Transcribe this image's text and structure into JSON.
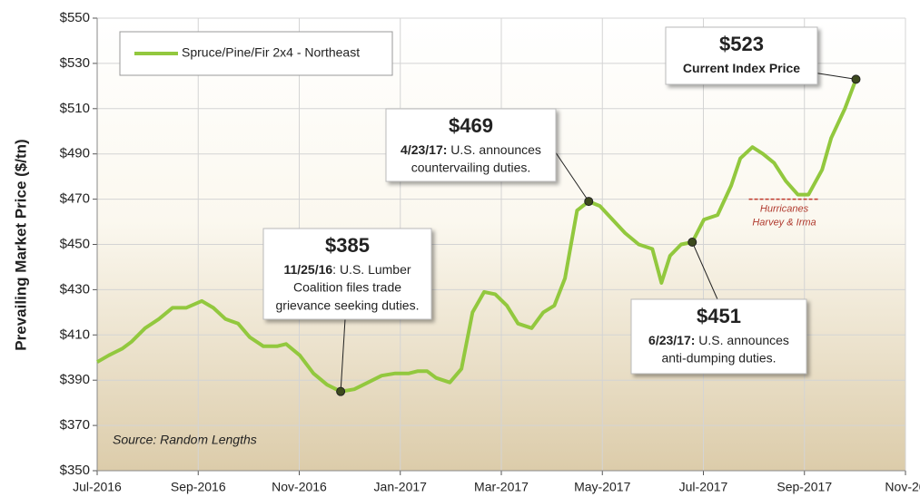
{
  "chart_data": {
    "type": "line",
    "y_label": "Prevailing Market Price ($/tn)",
    "source": "Source: Random Lengths",
    "legend": "upper left",
    "grid": true,
    "xlim": [
      0,
      16
    ],
    "xticks": [
      {
        "value": 0,
        "label": "Jul-2016"
      },
      {
        "value": 2,
        "label": "Sep-2016"
      },
      {
        "value": 4,
        "label": "Nov-2016"
      },
      {
        "value": 6,
        "label": "Jan-2017"
      },
      {
        "value": 8,
        "label": "Mar-2017"
      },
      {
        "value": 10,
        "label": "May-2017"
      },
      {
        "value": 12,
        "label": "Jul-2017"
      },
      {
        "value": 14,
        "label": "Sep-2017"
      },
      {
        "value": 16,
        "label": "Nov-20"
      }
    ],
    "ylim": [
      350,
      550
    ],
    "yticks": [
      {
        "value": 350,
        "label": "$350"
      },
      {
        "value": 370,
        "label": "$370"
      },
      {
        "value": 390,
        "label": "$390"
      },
      {
        "value": 410,
        "label": "$410"
      },
      {
        "value": 430,
        "label": "$430"
      },
      {
        "value": 450,
        "label": "$450"
      },
      {
        "value": 470,
        "label": "$470"
      },
      {
        "value": 490,
        "label": "$490"
      },
      {
        "value": 510,
        "label": "$510"
      },
      {
        "value": 530,
        "label": "$530"
      },
      {
        "value": 550,
        "label": "$550"
      }
    ],
    "x": [
      0,
      0.23,
      0.5,
      0.68,
      0.95,
      1.22,
      1.49,
      1.76,
      2.07,
      2.3,
      2.54,
      2.79,
      3.02,
      3.29,
      3.56,
      3.74,
      4.01,
      4.28,
      4.55,
      4.82,
      5.09,
      5.36,
      5.63,
      5.9,
      6.17,
      6.35,
      6.53,
      6.71,
      6.98,
      7.21,
      7.43,
      7.66,
      7.88,
      8.11,
      8.33,
      8.6,
      8.83,
      9.05,
      9.26,
      9.5,
      9.73,
      9.95,
      10.16,
      10.45,
      10.72,
      10.99,
      11.17,
      11.34,
      11.56,
      11.78,
      12.01,
      12.28,
      12.55,
      12.73,
      12.97,
      13.18,
      13.4,
      13.63,
      13.87,
      14.08,
      14.35,
      14.53,
      14.8,
      15.02
    ],
    "series": [
      {
        "name": "Spruce/Pine/Fir 2x4 - Northeast",
        "color": "#92c83e",
        "values": [
          398,
          401,
          404,
          407,
          413,
          417,
          422,
          422,
          425,
          422,
          417,
          415,
          409,
          405,
          405,
          406,
          401,
          393,
          388,
          385,
          386,
          389,
          392,
          393,
          393,
          394,
          394,
          391,
          389,
          395,
          420,
          429,
          428,
          423,
          415,
          413,
          420,
          423,
          435,
          465,
          469,
          467,
          462,
          455,
          450,
          448,
          433,
          445,
          450,
          451,
          461,
          463,
          476,
          488,
          493,
          490,
          486,
          478,
          472,
          472,
          483,
          497,
          510,
          523
        ]
      }
    ],
    "annotations": [
      {
        "index": 19,
        "label": "$385",
        "date": "11/25/16",
        "lines": [
          ": U.S. Lumber",
          "Coalition files trade",
          "grievance seeking duties."
        ]
      },
      {
        "index": 40,
        "label": "$469",
        "date": "4/23/17:",
        "lines": [
          " U.S. announces",
          "countervailing duties."
        ]
      },
      {
        "index": 49,
        "label": "$451",
        "date": "6/23/17:",
        "lines": [
          " U.S. announces",
          "anti-dumping duties."
        ]
      },
      {
        "index": 63,
        "label": "$523",
        "date": "Current Index Price",
        "lines": []
      }
    ],
    "hurricane": {
      "level": 470,
      "xrange": [
        12.9,
        14.3
      ],
      "lines": [
        "Hurricanes",
        "Harvey & Irma"
      ]
    }
  }
}
